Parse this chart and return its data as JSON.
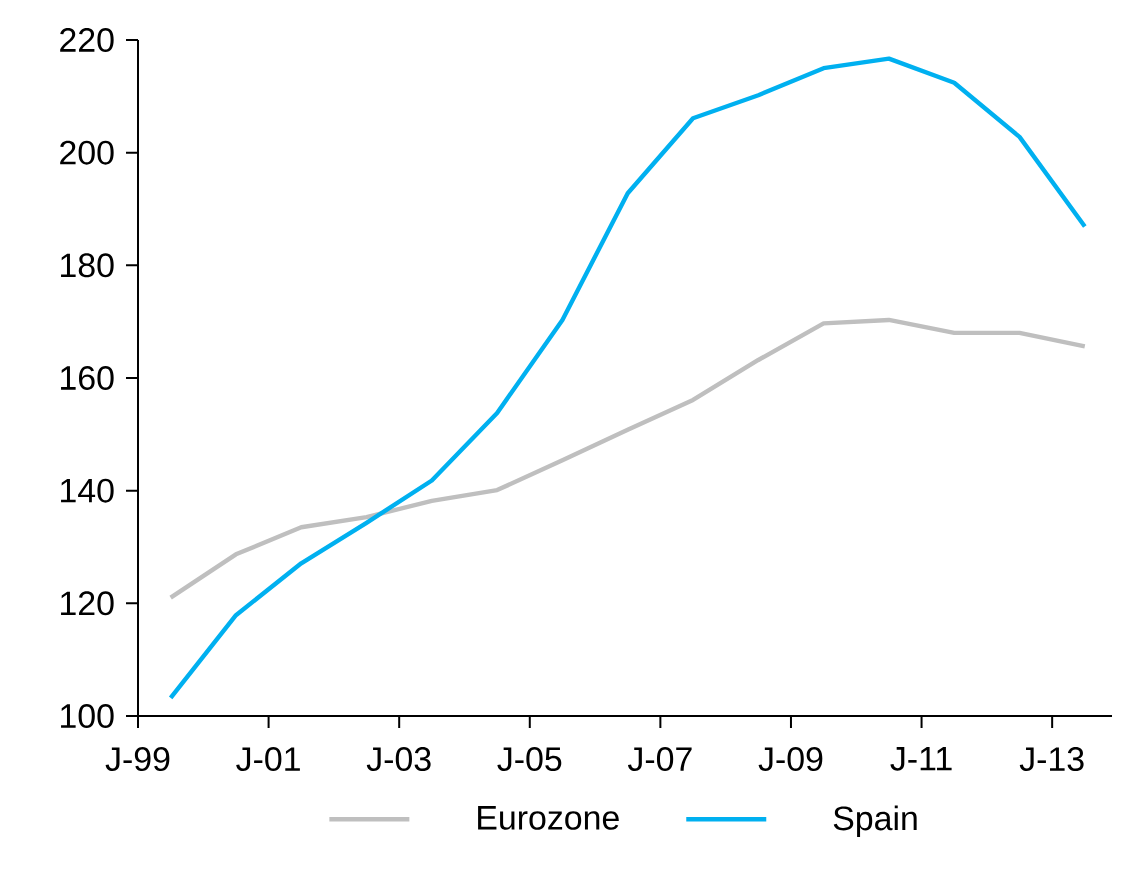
{
  "chart_data": {
    "type": "line",
    "x": [
      "1999-07",
      "2000-07",
      "2001-07",
      "2002-07",
      "2003-07",
      "2004-07",
      "2005-07",
      "2006-07",
      "2007-07",
      "2008-07",
      "2009-07",
      "2010-07",
      "2011-07",
      "2012-07",
      "2013-07"
    ],
    "series": [
      {
        "name": "Eurozone",
        "color": "#bfbfbf",
        "values": [
          121,
          128.7,
          133.5,
          135.3,
          138.2,
          140.1,
          145.4,
          150.8,
          156.1,
          163.2,
          169.7,
          170.3,
          168,
          168,
          165.6
        ]
      },
      {
        "name": "Spain",
        "color": "#00b0f0",
        "values": [
          103.2,
          117.9,
          127.1,
          134.3,
          141.8,
          153.8,
          170.3,
          192.8,
          206.1,
          210.2,
          215,
          216.7,
          212.4,
          202.8,
          186.9
        ]
      }
    ],
    "xlim": [
      "1999-01",
      "2013-12"
    ],
    "xticks": [
      {
        "value": "1999-01",
        "label": "J-99"
      },
      {
        "value": "2001-01",
        "label": "J-01"
      },
      {
        "value": "2003-01",
        "label": "J-03"
      },
      {
        "value": "2005-01",
        "label": "J-05"
      },
      {
        "value": "2007-01",
        "label": "J-07"
      },
      {
        "value": "2009-01",
        "label": "J-09"
      },
      {
        "value": "2011-01",
        "label": "J-11"
      },
      {
        "value": "2013-01",
        "label": "J-13"
      }
    ],
    "ylim": [
      100,
      220
    ],
    "yticks": [
      100,
      120,
      140,
      160,
      180,
      200,
      220
    ],
    "grid": false,
    "legend": "bottom",
    "marker": "none",
    "line_style": "solid"
  }
}
